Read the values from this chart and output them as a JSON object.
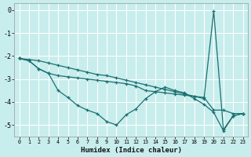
{
  "xlabel": "Humidex (Indice chaleur)",
  "background_color": "#c8eded",
  "grid_color": "#b8d8d8",
  "line_color": "#1a7070",
  "xlim": [
    -0.5,
    23.5
  ],
  "ylim": [
    -5.5,
    0.3
  ],
  "yticks": [
    0,
    -1,
    -2,
    -3,
    -4,
    -5
  ],
  "xticks": [
    0,
    1,
    2,
    3,
    4,
    5,
    6,
    7,
    8,
    9,
    10,
    11,
    12,
    13,
    14,
    15,
    16,
    17,
    18,
    19,
    20,
    21,
    22,
    23
  ],
  "line_diag_x": [
    0,
    1,
    2,
    3,
    4,
    5,
    6,
    7,
    8,
    9,
    10,
    11,
    12,
    13,
    14,
    15,
    16,
    17,
    18,
    19,
    20,
    21,
    22,
    23
  ],
  "line_diag_y": [
    -2.1,
    -2.15,
    -2.2,
    -2.3,
    -2.4,
    -2.5,
    -2.6,
    -2.7,
    -2.8,
    -2.85,
    -2.95,
    -3.05,
    -3.15,
    -3.25,
    -3.35,
    -3.45,
    -3.55,
    -3.65,
    -3.75,
    -3.85,
    -0.05,
    -5.2,
    -4.6,
    -4.5
  ],
  "line_zigzag_x": [
    0,
    1,
    2,
    3,
    4,
    5,
    6,
    7,
    8,
    9,
    10,
    11,
    12,
    13,
    14,
    15,
    16,
    17,
    18,
    19,
    20,
    21,
    22,
    23
  ],
  "line_zigzag_y": [
    -2.1,
    -2.2,
    -2.55,
    -2.75,
    -3.5,
    -3.8,
    -4.15,
    -4.35,
    -4.5,
    -4.85,
    -5.0,
    -4.55,
    -4.3,
    -3.85,
    -3.55,
    -3.35,
    -3.5,
    -3.6,
    -3.85,
    -4.1,
    -4.45,
    -5.25,
    -4.6,
    -4.5
  ],
  "line_flat_x": [
    0,
    1,
    2,
    3,
    4,
    5,
    6,
    7,
    8,
    9,
    10,
    11,
    12,
    13,
    14,
    15,
    16,
    17,
    18,
    19,
    20,
    21,
    22,
    23
  ],
  "line_flat_y": [
    -2.1,
    -2.2,
    -2.55,
    -2.75,
    -2.85,
    -2.9,
    -2.95,
    -3.0,
    -3.05,
    -3.1,
    -3.15,
    -3.2,
    -3.3,
    -3.5,
    -3.55,
    -3.6,
    -3.65,
    -3.7,
    -3.75,
    -3.8,
    -4.35,
    -4.35,
    -4.5,
    -4.5
  ]
}
